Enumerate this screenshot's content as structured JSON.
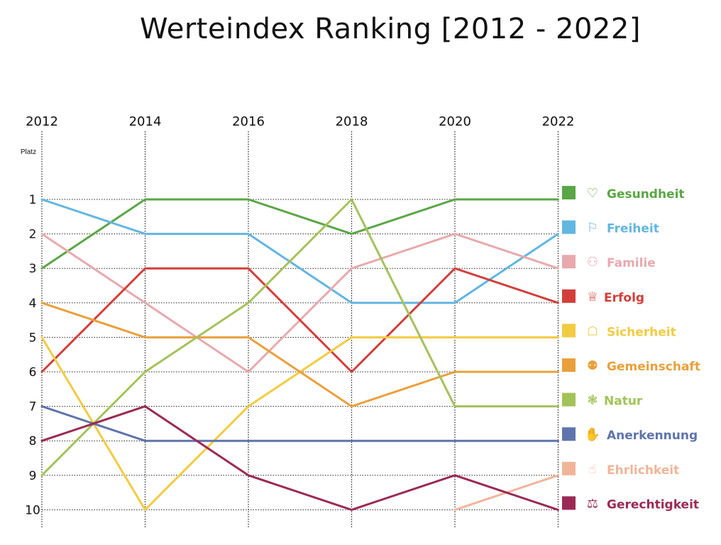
{
  "chart_data": {
    "type": "line",
    "title": "Werteindex Ranking [2012 - 2022]",
    "ylabel": "Platz",
    "xlabel": "",
    "x": [
      "2012",
      "2014",
      "2016",
      "2018",
      "2020",
      "2022"
    ],
    "y_ticks": [
      "1",
      "2",
      "3",
      "4",
      "5",
      "6",
      "7",
      "8",
      "9",
      "10"
    ],
    "ylim": [
      1,
      10
    ],
    "y_inverted": true,
    "grid": true,
    "legend_position": "right",
    "series": [
      {
        "name": "Gesundheit",
        "color": "#5aa646",
        "icon": "heart-pulse-icon",
        "values": [
          3,
          1,
          1,
          2,
          1,
          1
        ]
      },
      {
        "name": "Freiheit",
        "color": "#62b6e0",
        "icon": "flag-icon",
        "values": [
          1,
          2,
          2,
          4,
          4,
          2
        ]
      },
      {
        "name": "Familie",
        "color": "#e8a9ad",
        "icon": "family-icon",
        "values": [
          2,
          4,
          6,
          3,
          2,
          3
        ]
      },
      {
        "name": "Erfolg",
        "color": "#d23f3a",
        "icon": "trophy-icon",
        "values": [
          6,
          3,
          3,
          6,
          3,
          4
        ]
      },
      {
        "name": "Sicherheit",
        "color": "#f2cb42",
        "icon": "lock-icon",
        "values": [
          5,
          10,
          7,
          5,
          5,
          5
        ]
      },
      {
        "name": "Gemeinschaft",
        "color": "#e9a03b",
        "icon": "group-icon",
        "values": [
          4,
          5,
          5,
          7,
          6,
          6
        ]
      },
      {
        "name": "Natur",
        "color": "#a4c25a",
        "icon": "nature-icon",
        "values": [
          9,
          6,
          4,
          1,
          7,
          7
        ]
      },
      {
        "name": "Anerkennung",
        "color": "#5f74ad",
        "icon": "thumbs-up-icon",
        "values": [
          7,
          8,
          8,
          8,
          8,
          8
        ]
      },
      {
        "name": "Ehrlichkeit",
        "color": "#f0b598",
        "icon": "hand-icon",
        "values": [
          null,
          null,
          null,
          null,
          10,
          9
        ]
      },
      {
        "name": "Gerechtigkeit",
        "color": "#9a2a55",
        "icon": "scales-icon",
        "values": [
          8,
          7,
          9,
          10,
          9,
          10
        ]
      }
    ]
  }
}
